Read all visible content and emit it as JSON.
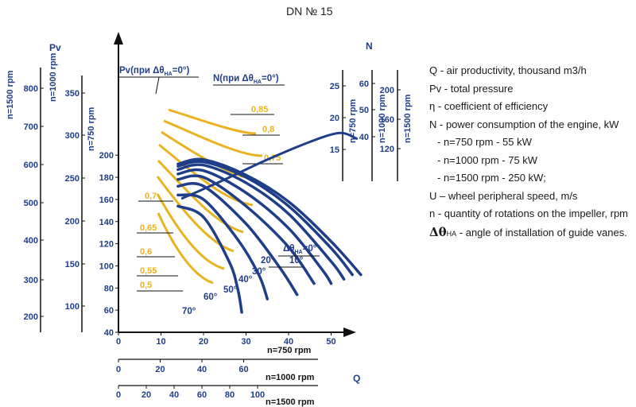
{
  "title": "DN № 15",
  "legend": [
    {
      "text": "Q - air productivity, thousand m3/h"
    },
    {
      "text": "Pv - total pressure"
    },
    {
      "text": "η - coefficient of efficiency"
    },
    {
      "text": "N - power consumption of the engine, kW"
    },
    {
      "text": "- n=750 rpm - 55 kW",
      "indent": true
    },
    {
      "text": "- n=1000 rpm - 75 kW",
      "indent": true
    },
    {
      "text": "- n=1500 rpm - 250 kW;",
      "indent": true
    },
    {
      "text": "U – wheel peripheral speed, m/s"
    },
    {
      "text": "n - quantity of rotations on the impeller, rpm",
      "wrap": true
    }
  ],
  "angle_legend": {
    "symbol": "Δθ",
    "sub": "НА",
    "text": " - angle of installation of guide vanes."
  },
  "colors": {
    "blue": "#1f3e8a",
    "yellow": "#e9b320",
    "black": "#111111"
  },
  "chart_data": {
    "type": "line",
    "x_axes": [
      {
        "label": "n=750 rpm",
        "ticks": [
          "0",
          "10",
          "20",
          "30",
          "40",
          "50"
        ],
        "range": [
          0,
          60
        ]
      },
      {
        "label": "n=1000 rpm",
        "ticks": [
          "0",
          "20",
          "40",
          "60"
        ],
        "range": [
          0,
          80
        ]
      },
      {
        "label": "n=1500 rpm",
        "ticks": [
          "0",
          "20",
          "40",
          "60",
          "80",
          "100"
        ],
        "range": [
          0,
          120
        ]
      }
    ],
    "x_title": "Q",
    "pv_axes": [
      {
        "label": "n=750 rpm",
        "ticks": [
          "40",
          "60",
          "80",
          "100",
          "120",
          "140",
          "160",
          "180",
          "200"
        ],
        "range": [
          40,
          200
        ]
      },
      {
        "label": "n=1000 rpm",
        "ticks": [
          "100",
          "150",
          "200",
          "250",
          "300",
          "350"
        ]
      },
      {
        "label": "n=1500 rpm",
        "ticks": [
          "200",
          "300",
          "400",
          "500",
          "600",
          "700",
          "800"
        ]
      }
    ],
    "pv_title": "Pv",
    "n_axes": [
      {
        "label": "n=750 rpm",
        "ticks": [
          "15",
          "20",
          "25"
        ]
      },
      {
        "label": "n=1000 rpm",
        "ticks": [
          "40",
          "50",
          "60"
        ]
      },
      {
        "label": "n=1500 rpm",
        "ticks": [
          "120",
          "160",
          "200"
        ]
      }
    ],
    "n_title": "N",
    "curve_labels": {
      "pv": "Pv(при Δθ",
      "pv_sub": "НА",
      "pv_end": "=0°)",
      "n": "N(при Δθ",
      "n_sub": "НА",
      "n_end": "=0°)"
    },
    "pressure_curves": [
      {
        "angle": "Δθ",
        "angle_sub": "НА",
        "angle_end": "=0°",
        "points": [
          [
            14,
            192
          ],
          [
            20,
            196
          ],
          [
            30,
            182
          ],
          [
            40,
            158
          ],
          [
            50,
            122
          ],
          [
            57,
            92
          ]
        ]
      },
      {
        "angle": "10°",
        "points": [
          [
            14,
            190
          ],
          [
            20,
            194
          ],
          [
            30,
            180
          ],
          [
            40,
            154
          ],
          [
            50,
            116
          ],
          [
            55,
            92
          ]
        ]
      },
      {
        "angle": "20°",
        "points": [
          [
            14,
            187
          ],
          [
            20,
            191
          ],
          [
            30,
            175
          ],
          [
            40,
            147
          ],
          [
            50,
            104
          ],
          [
            53,
            88
          ]
        ]
      },
      {
        "angle": "30°",
        "points": [
          [
            14,
            183
          ],
          [
            20,
            186
          ],
          [
            30,
            166
          ],
          [
            40,
            134
          ],
          [
            48,
            96
          ],
          [
            50,
            84
          ]
        ]
      },
      {
        "angle": "40°",
        "points": [
          [
            14,
            178
          ],
          [
            20,
            180
          ],
          [
            30,
            154
          ],
          [
            40,
            117
          ],
          [
            46,
            84
          ]
        ]
      },
      {
        "angle": "50°",
        "points": [
          [
            14,
            172
          ],
          [
            20,
            172
          ],
          [
            30,
            138
          ],
          [
            38,
            98
          ],
          [
            42,
            74
          ]
        ]
      },
      {
        "angle": "60°",
        "points": [
          [
            14,
            164
          ],
          [
            20,
            160
          ],
          [
            28,
            124
          ],
          [
            33,
            92
          ],
          [
            35,
            70
          ]
        ]
      },
      {
        "angle": "70°",
        "points": [
          [
            14,
            154
          ],
          [
            20,
            144
          ],
          [
            26,
            104
          ],
          [
            28,
            80
          ],
          [
            29,
            58
          ]
        ]
      }
    ],
    "efficiency_labels": [
      "0,85",
      "0,8",
      "0,75",
      "0,7",
      "0,65",
      "0,6",
      "0,55",
      "0,5"
    ],
    "power_curve": [
      [
        15,
        161
      ],
      [
        25,
        178
      ],
      [
        35,
        196
      ],
      [
        45,
        212
      ],
      [
        52,
        220
      ],
      [
        56,
        215
      ]
    ]
  }
}
